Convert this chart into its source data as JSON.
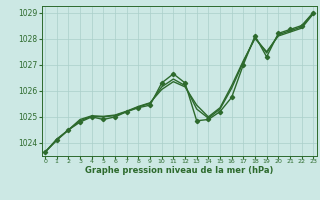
{
  "x": [
    0,
    1,
    2,
    3,
    4,
    5,
    6,
    7,
    8,
    9,
    10,
    11,
    12,
    13,
    14,
    15,
    16,
    17,
    18,
    19,
    20,
    21,
    22,
    23
  ],
  "y_main": [
    1023.65,
    1024.1,
    1024.5,
    1024.8,
    1025.0,
    1024.9,
    1025.0,
    1025.2,
    1025.35,
    1025.45,
    1026.3,
    1026.65,
    1026.3,
    1024.85,
    1024.9,
    1025.2,
    1025.75,
    1027.0,
    1028.1,
    1027.3,
    1028.2,
    1028.35,
    1028.5,
    1029.0
  ],
  "y_smooth1": [
    1023.65,
    1024.15,
    1024.5,
    1024.85,
    1025.02,
    1025.0,
    1025.05,
    1025.2,
    1025.38,
    1025.52,
    1026.15,
    1026.45,
    1026.2,
    1025.3,
    1024.95,
    1025.3,
    1026.1,
    1027.1,
    1028.05,
    1027.45,
    1028.15,
    1028.3,
    1028.45,
    1029.0
  ],
  "y_smooth2": [
    1023.65,
    1024.12,
    1024.5,
    1024.9,
    1025.04,
    1025.02,
    1025.07,
    1025.22,
    1025.4,
    1025.54,
    1026.05,
    1026.35,
    1026.15,
    1025.45,
    1025.0,
    1025.35,
    1026.2,
    1027.15,
    1028.0,
    1027.5,
    1028.1,
    1028.25,
    1028.4,
    1028.95
  ],
  "line_color": "#2d6a2d",
  "bg_color": "#cce8e4",
  "grid_color": "#aacfca",
  "xlabel": "Graphe pression niveau de la mer (hPa)",
  "ylim": [
    1023.5,
    1029.25
  ],
  "xlim": [
    -0.3,
    23.3
  ],
  "yticks": [
    1024,
    1025,
    1026,
    1027,
    1028,
    1029
  ],
  "xticks": [
    0,
    1,
    2,
    3,
    4,
    5,
    6,
    7,
    8,
    9,
    10,
    11,
    12,
    13,
    14,
    15,
    16,
    17,
    18,
    19,
    20,
    21,
    22,
    23
  ],
  "marker": "D",
  "marker_size": 2.2,
  "line_width": 1.0
}
